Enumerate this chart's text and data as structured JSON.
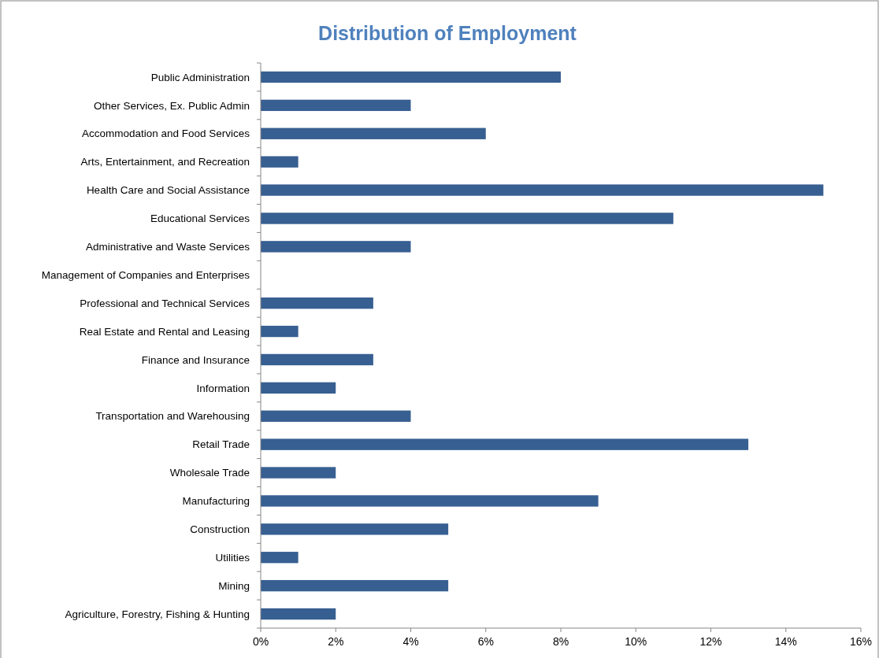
{
  "chart_data": {
    "type": "bar",
    "orientation": "horizontal",
    "title": "Distribution of Employment",
    "categories": [
      "Public Administration",
      "Other Services, Ex. Public Admin",
      "Accommodation and Food Services",
      "Arts, Entertainment, and Recreation",
      "Health Care and Social Assistance",
      "Educational Services",
      "Administrative and Waste Services",
      "Management of Companies and Enterprises",
      "Professional and Technical Services",
      "Real Estate and Rental and Leasing",
      "Finance and Insurance",
      "Information",
      "Transportation and Warehousing",
      "Retail Trade",
      "Wholesale Trade",
      "Manufacturing",
      "Construction",
      "Utilities",
      "Mining",
      "Agriculture, Forestry, Fishing & Hunting"
    ],
    "values": [
      8,
      4,
      6,
      1,
      15,
      11,
      4,
      0,
      3,
      1,
      3,
      2,
      4,
      13,
      2,
      9,
      5,
      1,
      5,
      2
    ],
    "color": "#375f91",
    "xlim": [
      0,
      16
    ],
    "xticks": [
      {
        "value": 0,
        "label": "0%"
      },
      {
        "value": 2,
        "label": "2%"
      },
      {
        "value": 4,
        "label": "4%"
      },
      {
        "value": 6,
        "label": "6%"
      },
      {
        "value": 8,
        "label": "8%"
      },
      {
        "value": 10,
        "label": "10%"
      },
      {
        "value": 12,
        "label": "12%"
      },
      {
        "value": 14,
        "label": "14%"
      },
      {
        "value": 16,
        "label": "16%"
      }
    ],
    "grid": false
  }
}
